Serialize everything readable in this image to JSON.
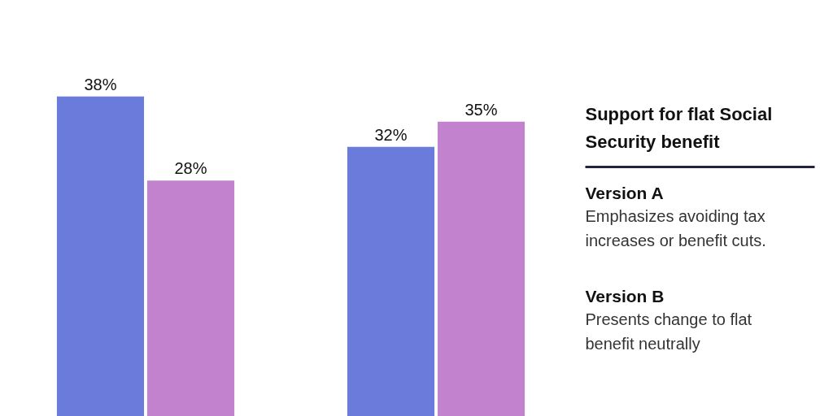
{
  "chart_data": {
    "type": "bar",
    "title": "Support for flat Social Security benefit",
    "categories": [
      null,
      null
    ],
    "series": [
      {
        "color": "#6a7bdb",
        "values": [
          38,
          32
        ],
        "value_labels": [
          "38%",
          "32%"
        ]
      },
      {
        "color": "#c282cd",
        "values": [
          28,
          35
        ],
        "value_labels": [
          "28%",
          "35%"
        ]
      }
    ],
    "annotations": [
      "Version A",
      "Emphasizes avoiding tax increases or benefit cuts.",
      "Version B",
      "Presents change to flat benefit neutrally"
    ]
  }
}
